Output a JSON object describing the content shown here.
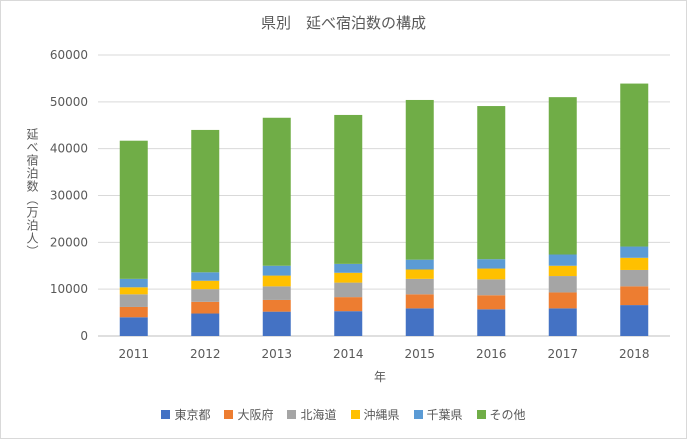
{
  "chart_data": {
    "type": "bar",
    "stacked": true,
    "title": "県別　延べ宿泊数の構成",
    "xlabel": "年",
    "ylabel": "延べ宿泊数（万泊人）",
    "categories": [
      "2011",
      "2012",
      "2013",
      "2014",
      "2015",
      "2016",
      "2017",
      "2018"
    ],
    "ylim": [
      0,
      60000
    ],
    "yticks": [
      "0",
      "10000",
      "20000",
      "30000",
      "40000",
      "50000",
      "60000"
    ],
    "grid": true,
    "legend_position": "bottom",
    "series": [
      {
        "name": "東京都",
        "color": "#4472c4",
        "values": [
          4000,
          4800,
          5200,
          5300,
          5900,
          5700,
          5900,
          6600
        ]
      },
      {
        "name": "大阪府",
        "color": "#ed7d31",
        "values": [
          2200,
          2500,
          2500,
          3000,
          3000,
          3000,
          3400,
          4000
        ]
      },
      {
        "name": "北海道",
        "color": "#a5a5a5",
        "values": [
          2700,
          2700,
          2900,
          3100,
          3300,
          3400,
          3500,
          3500
        ]
      },
      {
        "name": "沖縄県",
        "color": "#ffc000",
        "values": [
          1500,
          1800,
          2300,
          2100,
          2000,
          2300,
          2200,
          2600
        ]
      },
      {
        "name": "千葉県",
        "color": "#5b9bd5",
        "values": [
          1800,
          1800,
          2100,
          1900,
          2100,
          2000,
          2400,
          2400
        ]
      },
      {
        "name": "その他",
        "color": "#70ad47",
        "values": [
          29500,
          30400,
          31600,
          31800,
          34100,
          32700,
          33600,
          34800
        ]
      }
    ]
  }
}
